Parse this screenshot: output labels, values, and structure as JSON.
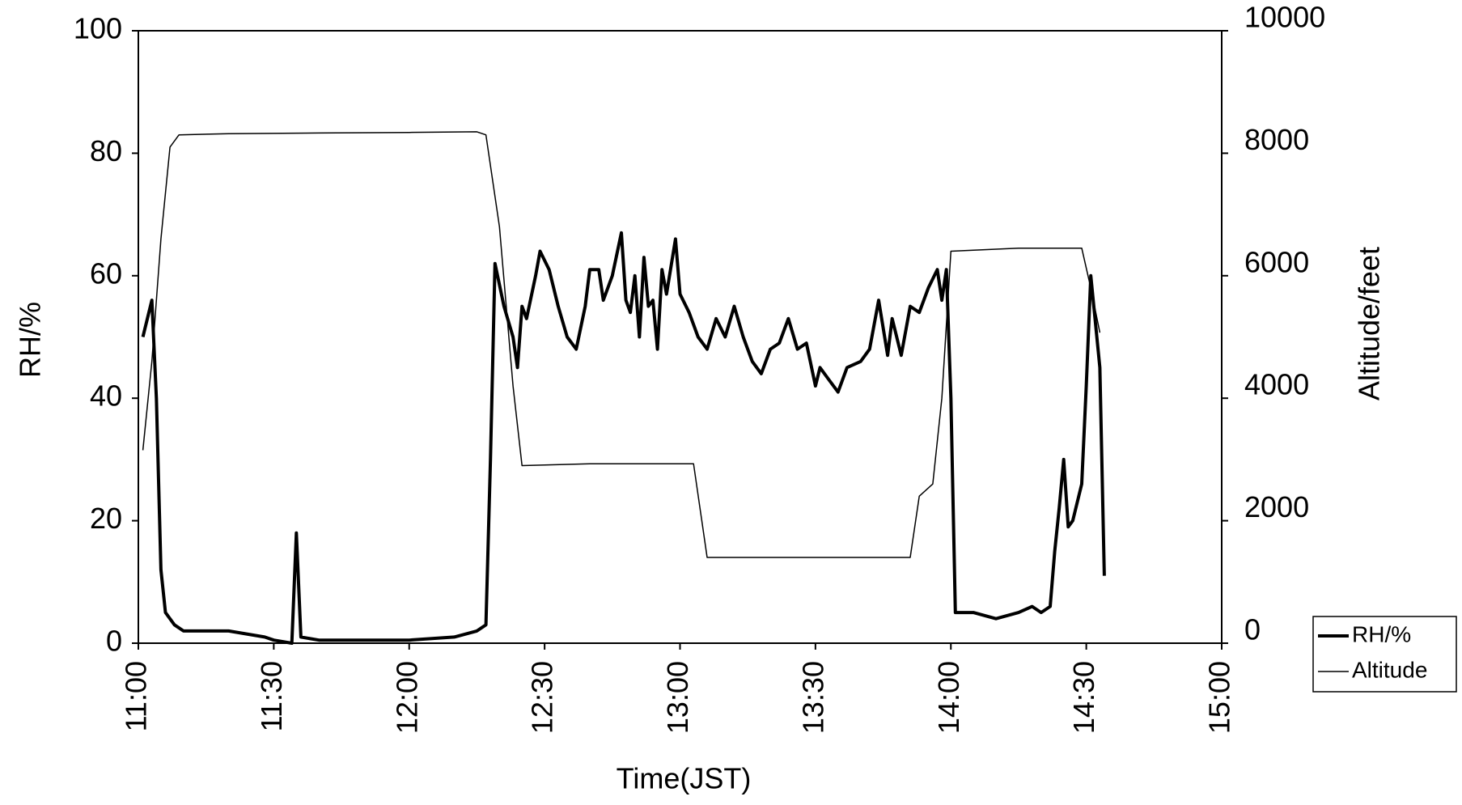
{
  "chart_data": {
    "type": "line",
    "xlabel": "Time(JST)",
    "ylabel": "RH/%",
    "y2label": "Altitude/feet",
    "xlim": [
      "11:00",
      "15:00"
    ],
    "xticks": [
      "11:00",
      "11:30",
      "12:00",
      "12:30",
      "13:00",
      "13:30",
      "14:00",
      "14:30",
      "15:00"
    ],
    "ylim": [
      0,
      100
    ],
    "yticks": [
      0,
      20,
      40,
      60,
      80,
      100
    ],
    "y2lim": [
      0,
      10000
    ],
    "y2ticks": [
      0,
      2000,
      4000,
      6000,
      8000,
      10000
    ],
    "legend": "lower right",
    "series": [
      {
        "name": "RH/%",
        "color": "#000000",
        "width": 4,
        "x": [
          "11:01",
          "11:03",
          "11:04",
          "11:05",
          "11:06",
          "11:08",
          "11:10",
          "11:20",
          "11:28",
          "11:30",
          "11:34",
          "11:35",
          "11:36",
          "11:40",
          "12:00",
          "12:10",
          "12:15",
          "12:17",
          "12:18",
          "12:19",
          "12:21",
          "12:23",
          "12:24",
          "12:25",
          "12:26",
          "12:28",
          "12:29",
          "12:31",
          "12:33",
          "12:35",
          "12:37",
          "12:39",
          "12:40",
          "12:42",
          "12:43",
          "12:45",
          "12:47",
          "12:48",
          "12:49",
          "12:50",
          "12:51",
          "12:52",
          "12:53",
          "12:54",
          "12:55",
          "12:56",
          "12:57",
          "12:59",
          "13:00",
          "13:02",
          "13:04",
          "13:06",
          "13:08",
          "13:10",
          "13:12",
          "13:14",
          "13:16",
          "13:18",
          "13:20",
          "13:22",
          "13:24",
          "13:26",
          "13:28",
          "13:30",
          "13:31",
          "13:33",
          "13:35",
          "13:37",
          "13:40",
          "13:42",
          "13:44",
          "13:46",
          "13:47",
          "13:49",
          "13:51",
          "13:53",
          "13:55",
          "13:57",
          "13:58",
          "13:59",
          "14:00",
          "14:01",
          "14:05",
          "14:10",
          "14:15",
          "14:18",
          "14:20",
          "14:22",
          "14:23",
          "14:24",
          "14:25",
          "14:26",
          "14:27",
          "14:29",
          "14:30",
          "14:31",
          "14:33",
          "14:34"
        ],
        "values": [
          50,
          56,
          40,
          12,
          5,
          3,
          2,
          2,
          1,
          0.5,
          0,
          18,
          1,
          0.5,
          0.5,
          1,
          2,
          3,
          30,
          62,
          55,
          50,
          45,
          55,
          53,
          60,
          64,
          61,
          55,
          50,
          48,
          55,
          61,
          61,
          56,
          60,
          67,
          56,
          54,
          60,
          50,
          63,
          55,
          56,
          48,
          61,
          57,
          66,
          57,
          54,
          50,
          48,
          53,
          50,
          55,
          50,
          46,
          44,
          48,
          49,
          53,
          48,
          49,
          42,
          45,
          43,
          41,
          45,
          46,
          48,
          56,
          47,
          53,
          47,
          55,
          54,
          58,
          61,
          56,
          61,
          40,
          5,
          5,
          4,
          5,
          6,
          5,
          6,
          15,
          22,
          30,
          19,
          20,
          26,
          42,
          60,
          45,
          11
        ]
      },
      {
        "name": "Altitude",
        "color": "#000000",
        "width": 1.5,
        "axis": "y2",
        "x": [
          "11:01",
          "11:03",
          "11:05",
          "11:07",
          "11:09",
          "11:20",
          "11:40",
          "12:00",
          "12:15",
          "12:17",
          "12:20",
          "12:23",
          "12:25",
          "12:40",
          "13:03",
          "13:06",
          "13:20",
          "13:51",
          "13:53",
          "13:56",
          "13:58",
          "14:00",
          "14:15",
          "14:29",
          "14:31",
          "14:33"
        ],
        "values": [
          3150,
          4600,
          6600,
          8100,
          8300,
          8320,
          8330,
          8340,
          8350,
          8300,
          6800,
          4200,
          2900,
          2930,
          2930,
          1400,
          1400,
          1400,
          2400,
          2600,
          4000,
          6400,
          6450,
          6450,
          5800,
          5070
        ]
      }
    ]
  }
}
